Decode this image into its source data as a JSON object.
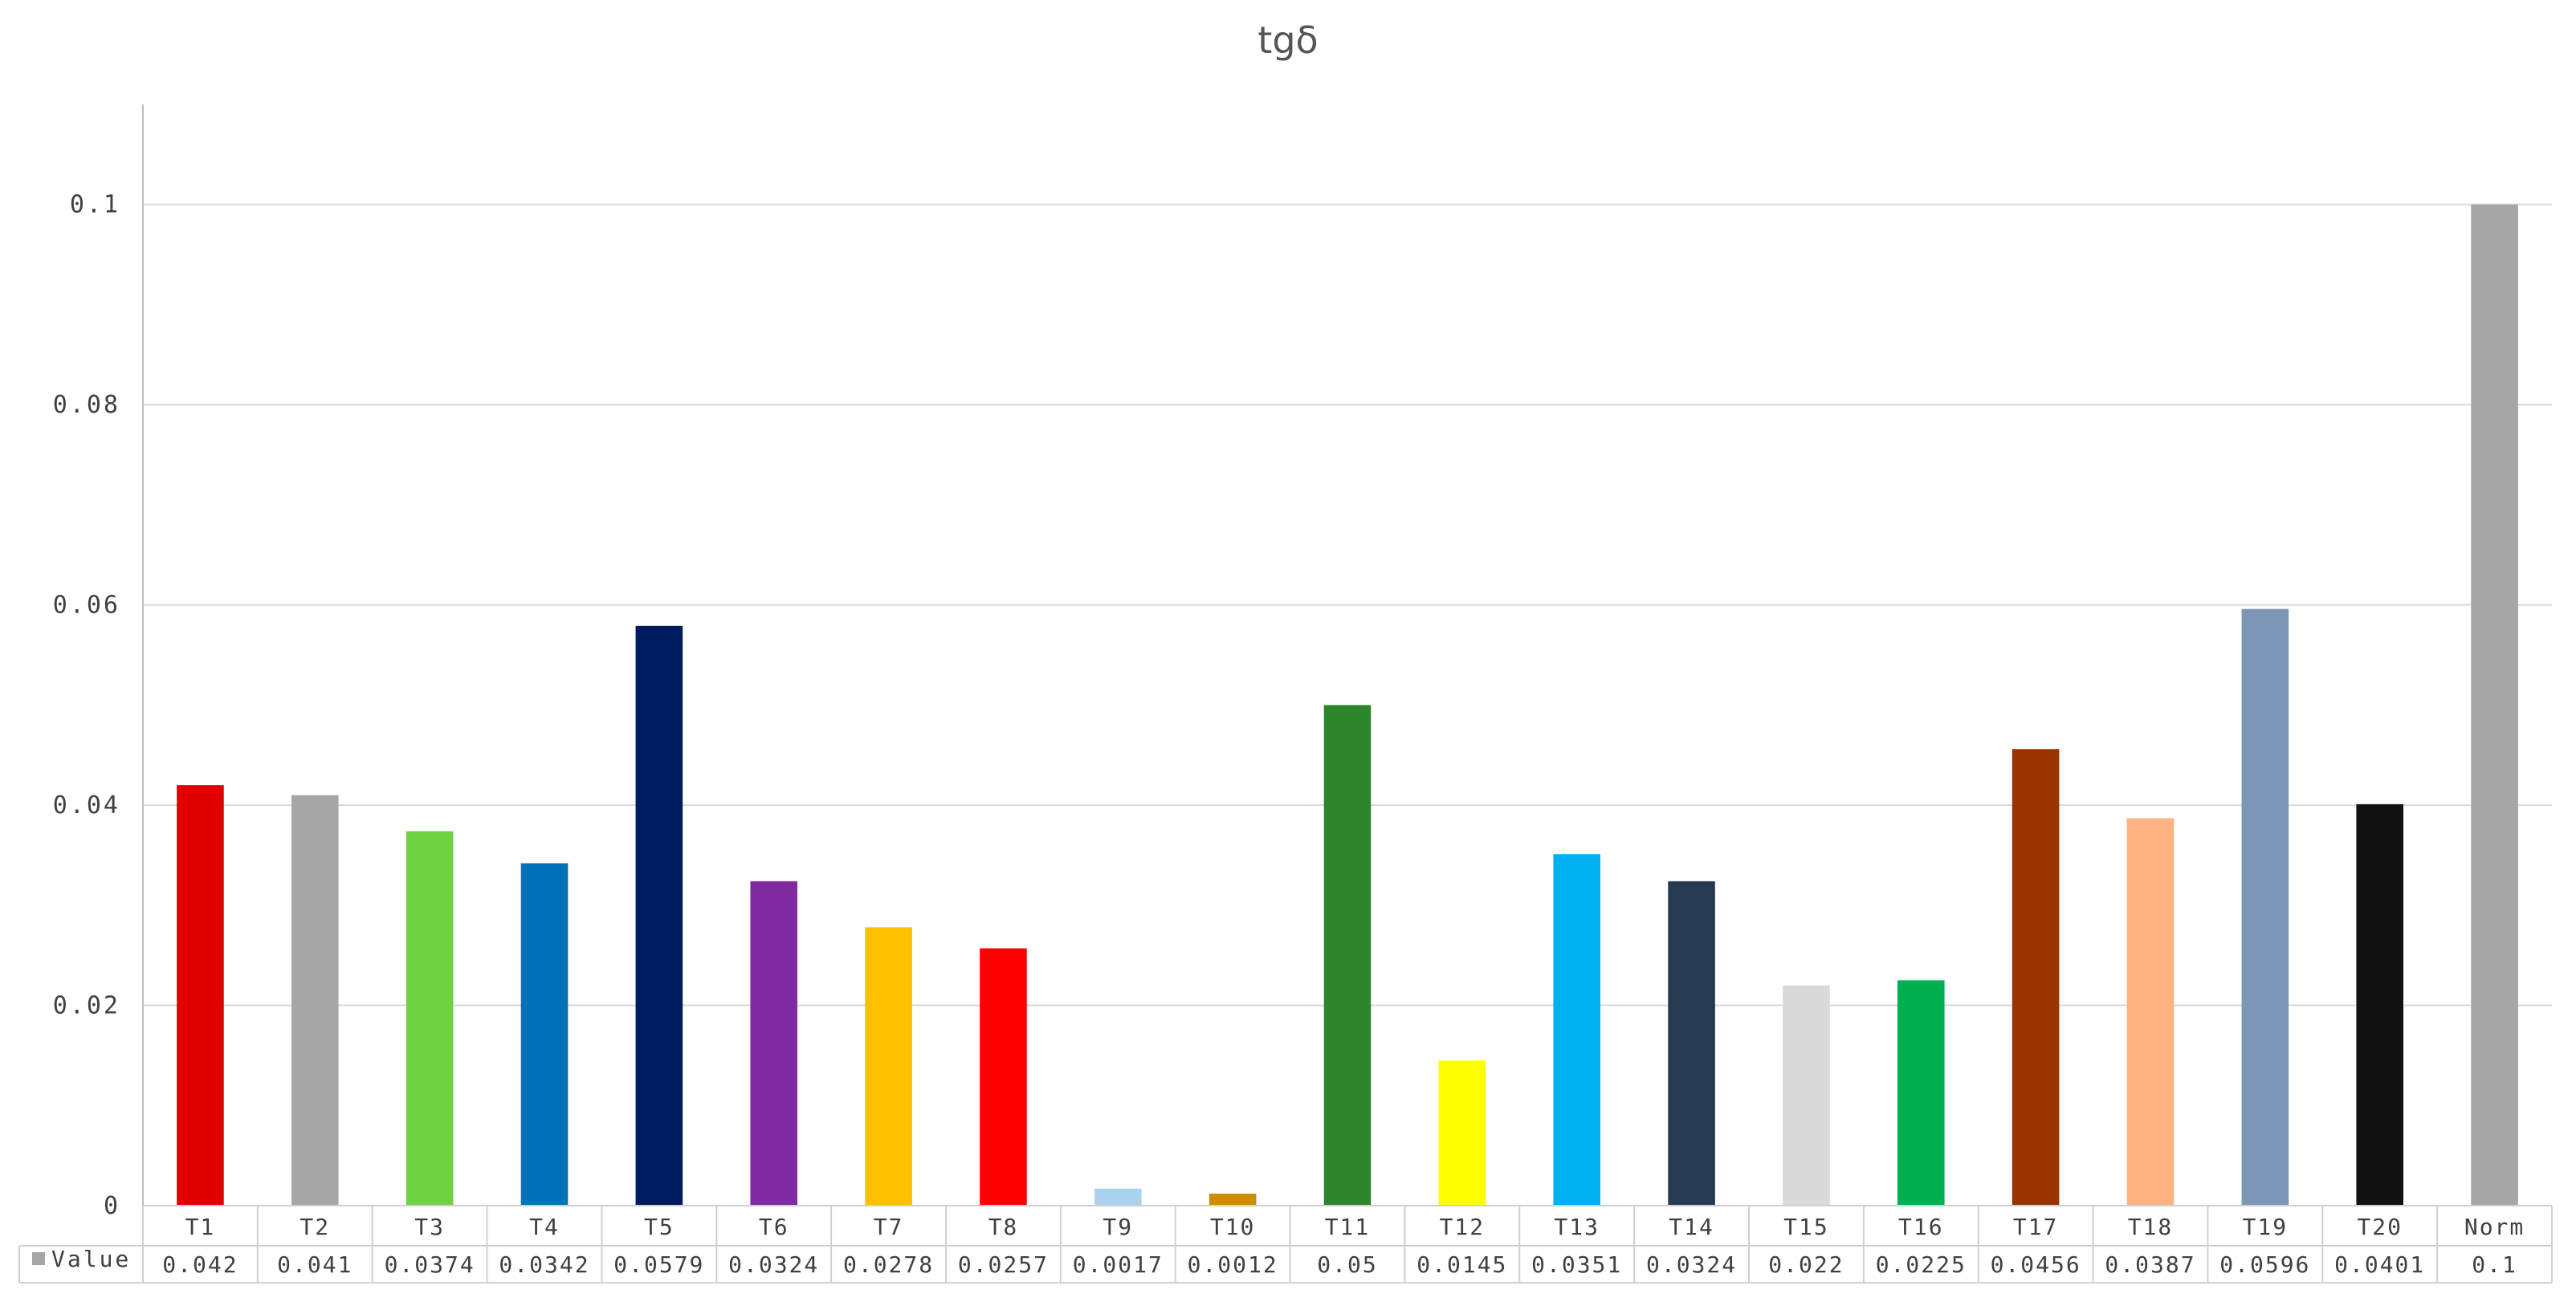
{
  "chart_data": {
    "type": "bar",
    "title": "tgδ",
    "xlabel": "",
    "ylabel": "",
    "ylim": [
      0,
      0.11
    ],
    "yticks": [
      0,
      0.02,
      0.04,
      0.06,
      0.08,
      0.1
    ],
    "ytick_labels": [
      "0",
      "0.02",
      "0.04",
      "0.06",
      "0.08",
      "0.1"
    ],
    "grid": true,
    "legend": "data-table-left",
    "categories": [
      "T1",
      "T2",
      "T3",
      "T4",
      "T5",
      "T6",
      "T7",
      "T8",
      "T9",
      "T10",
      "T11",
      "T12",
      "T13",
      "T14",
      "T15",
      "T16",
      "T17",
      "T18",
      "T19",
      "T20",
      "Norm"
    ],
    "series": [
      {
        "name": "Value",
        "values": [
          0.042,
          0.041,
          0.0374,
          0.0342,
          0.0579,
          0.0324,
          0.0278,
          0.0257,
          0.0017,
          0.0012,
          0.05,
          0.0145,
          0.0351,
          0.0324,
          0.022,
          0.0225,
          0.0456,
          0.0387,
          0.0596,
          0.0401,
          0.1
        ],
        "value_labels": [
          "0.042",
          "0.041",
          "0.0374",
          "0.0342",
          "0.0579",
          "0.0324",
          "0.0278",
          "0.0257",
          "0.0017",
          "0.0012",
          "0.05",
          "0.0145",
          "0.0351",
          "0.0324",
          "0.022",
          "0.0225",
          "0.0456",
          "0.0387",
          "0.0596",
          "0.0401",
          "0.1"
        ],
        "colors": [
          "#e00000",
          "#a6a6a6",
          "#6fd243",
          "#0070b8",
          "#001a5e",
          "#7f2aa3",
          "#ffc000",
          "#ff0000",
          "#a9d3ef",
          "#d08c00",
          "#2f852b",
          "#ffff00",
          "#00b0f0",
          "#263a52",
          "#d9d9d9",
          "#00b050",
          "#993300",
          "#ffb380",
          "#7c97b6",
          "#111111",
          "#a6a6a6"
        ]
      }
    ],
    "legend_color": "#a6a6a6"
  }
}
